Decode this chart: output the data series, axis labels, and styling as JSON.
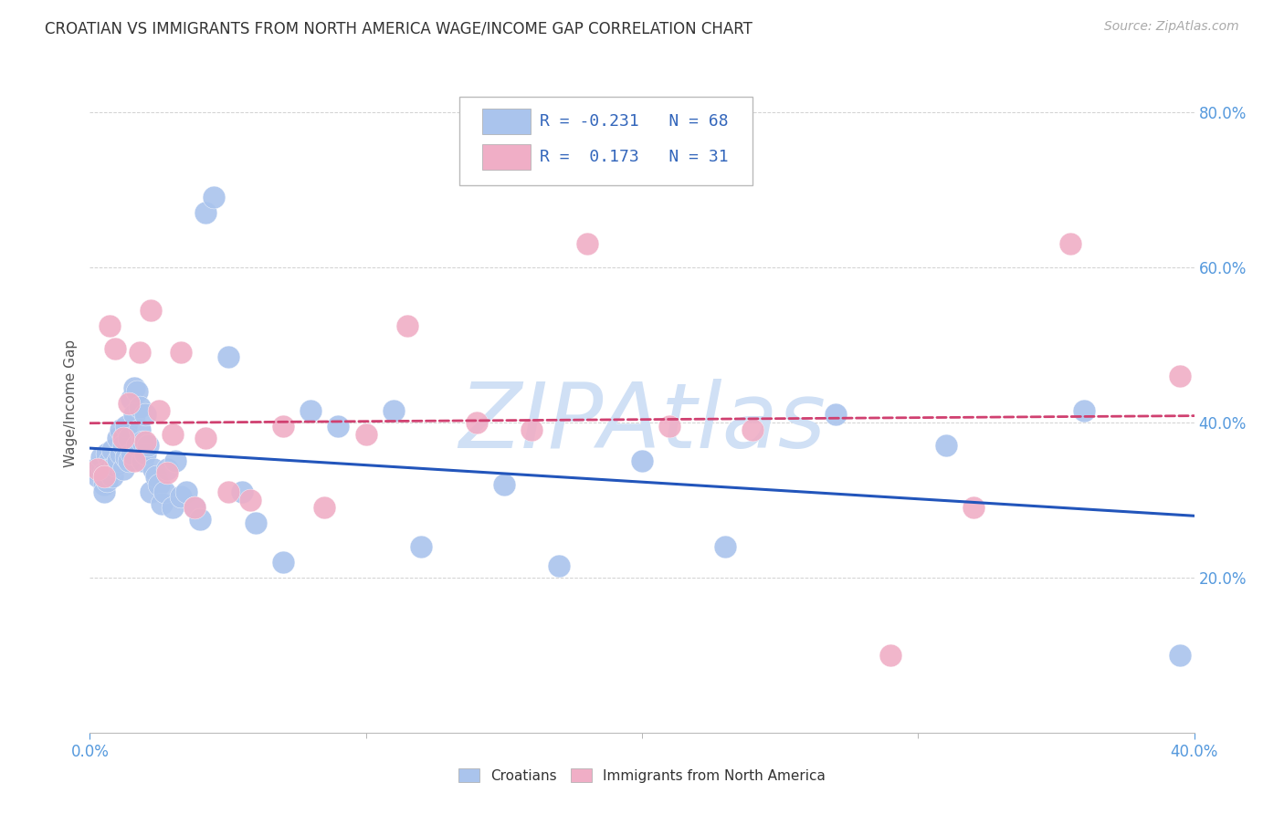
{
  "title": "CROATIAN VS IMMIGRANTS FROM NORTH AMERICA WAGE/INCOME GAP CORRELATION CHART",
  "source": "Source: ZipAtlas.com",
  "ylabel": "Wage/Income Gap",
  "xlim": [
    0.0,
    0.4
  ],
  "ylim": [
    0.0,
    0.85
  ],
  "watermark": "ZIPAtlas",
  "croatians": {
    "R": -0.231,
    "N": 68,
    "color": "#aac4ed",
    "line_color": "#2255bb",
    "x": [
      0.002,
      0.003,
      0.004,
      0.004,
      0.005,
      0.005,
      0.005,
      0.006,
      0.006,
      0.007,
      0.007,
      0.008,
      0.008,
      0.009,
      0.01,
      0.01,
      0.011,
      0.011,
      0.012,
      0.012,
      0.013,
      0.013,
      0.014,
      0.014,
      0.015,
      0.015,
      0.016,
      0.016,
      0.017,
      0.017,
      0.018,
      0.018,
      0.019,
      0.019,
      0.02,
      0.02,
      0.021,
      0.022,
      0.023,
      0.024,
      0.025,
      0.026,
      0.027,
      0.028,
      0.03,
      0.031,
      0.033,
      0.035,
      0.038,
      0.04,
      0.042,
      0.045,
      0.05,
      0.055,
      0.06,
      0.07,
      0.08,
      0.09,
      0.11,
      0.12,
      0.15,
      0.17,
      0.2,
      0.23,
      0.27,
      0.31,
      0.36,
      0.395
    ],
    "y": [
      0.34,
      0.33,
      0.345,
      0.355,
      0.335,
      0.32,
      0.31,
      0.325,
      0.36,
      0.35,
      0.34,
      0.365,
      0.33,
      0.345,
      0.38,
      0.35,
      0.39,
      0.36,
      0.37,
      0.34,
      0.395,
      0.355,
      0.38,
      0.35,
      0.43,
      0.36,
      0.445,
      0.41,
      0.44,
      0.37,
      0.42,
      0.39,
      0.375,
      0.35,
      0.41,
      0.36,
      0.37,
      0.31,
      0.34,
      0.33,
      0.32,
      0.295,
      0.31,
      0.34,
      0.29,
      0.35,
      0.305,
      0.31,
      0.29,
      0.275,
      0.67,
      0.69,
      0.485,
      0.31,
      0.27,
      0.22,
      0.415,
      0.395,
      0.415,
      0.24,
      0.32,
      0.215,
      0.35,
      0.24,
      0.41,
      0.37,
      0.415,
      0.1
    ]
  },
  "immigrants": {
    "R": 0.173,
    "N": 31,
    "color": "#f0aec6",
    "line_color": "#d04070",
    "x": [
      0.003,
      0.005,
      0.007,
      0.009,
      0.012,
      0.014,
      0.016,
      0.018,
      0.02,
      0.022,
      0.025,
      0.028,
      0.03,
      0.033,
      0.038,
      0.042,
      0.05,
      0.058,
      0.07,
      0.085,
      0.1,
      0.115,
      0.14,
      0.16,
      0.18,
      0.21,
      0.24,
      0.29,
      0.32,
      0.355,
      0.395
    ],
    "y": [
      0.34,
      0.33,
      0.525,
      0.495,
      0.38,
      0.425,
      0.35,
      0.49,
      0.375,
      0.545,
      0.415,
      0.335,
      0.385,
      0.49,
      0.29,
      0.38,
      0.31,
      0.3,
      0.395,
      0.29,
      0.385,
      0.525,
      0.4,
      0.39,
      0.63,
      0.395,
      0.39,
      0.1,
      0.29,
      0.63,
      0.46
    ]
  },
  "title_fontsize": 12,
  "axis_label_fontsize": 11,
  "tick_fontsize": 12,
  "legend_fontsize": 13,
  "source_fontsize": 10,
  "background_color": "#ffffff",
  "grid_color": "#cccccc",
  "tick_color": "#5599dd",
  "watermark_color": "#d0e0f5",
  "watermark_fontsize": 72
}
